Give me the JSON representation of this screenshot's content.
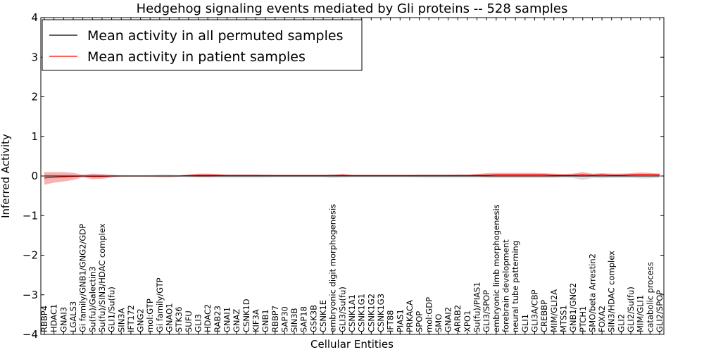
{
  "chart_data": {
    "type": "line",
    "title": "Hedgehog signaling events mediated by Gli proteins -- 528 samples",
    "xlabel": "Cellular Entities",
    "ylabel": "Inferred Activity",
    "ylim": [
      -4,
      4
    ],
    "yticks": [
      -4,
      -3,
      -2,
      -1,
      0,
      1,
      2,
      3,
      4
    ],
    "legend_position": "top-left",
    "colors": {
      "permuted": "#000000",
      "patient": "#ff0000",
      "patient_band": "#f4a0a0",
      "permuted_band": "#c0c0c0"
    },
    "categories": [
      "RBBP4",
      "HDAC1",
      "GNAI3",
      "LGALS3",
      "Gi family/GNB1/GNG2/GDP",
      "Su(fu)/Galectin3",
      "Su(fu)/SIN3/HDAC complex",
      "GLI1/Su(fu)",
      "SIN3A",
      "IFT172",
      "GNG2",
      "mol:GTP",
      "Gi family/GTP",
      "GNAO1",
      "STK36",
      "SUFU",
      "GLI3",
      "HDAC2",
      "RAB23",
      "GNAI1",
      "GNAZ",
      "CSNK1D",
      "KIF3A",
      "GNB1",
      "RBBP7",
      "SAP30",
      "SIN3B",
      "SAP18",
      "GSK3B",
      "CSNK1E",
      "embryonic digit morphogenesis",
      "GLI3/Su(fu)",
      "CSNK1A1",
      "CSNK1G1",
      "CSNK1G2",
      "CSNK1G3",
      "IFT88",
      "PIAS1",
      "PRKACA",
      "SPOP",
      "mol:GDP",
      "SMO",
      "GNAI2",
      "ARRB2",
      "XPO1",
      "Su(fu)/PIAS1",
      "GLI3/SPOP",
      "embryonic limb morphogenesis",
      "forebrain development",
      "neural tube patterning",
      "GLI1",
      "GLI3A/CBP",
      "CREBBP",
      "MIM/GLI2A",
      "MTSS1",
      "GNB1/GNG2",
      "PTCH1",
      "SMO/beta Arrestin2",
      "FOXA2",
      "SIN3/HDAC complex",
      "GLI2",
      "GLI2/Su(fu)",
      "MIM/GLI1",
      "catabolic process",
      "GLI2/SPOP"
    ],
    "series": [
      {
        "name": "Mean activity in all permuted samples",
        "values": [
          0,
          0,
          0,
          0,
          0,
          0,
          0,
          0,
          0,
          0,
          0,
          0,
          0,
          0,
          0,
          0,
          0,
          0,
          0,
          0,
          0,
          0,
          0,
          0,
          0,
          0,
          0,
          0,
          0,
          0,
          0,
          0,
          0,
          0,
          0,
          0,
          0,
          0,
          0,
          0,
          0,
          0,
          0,
          0,
          0,
          0,
          0,
          0,
          0,
          0,
          0,
          0,
          0,
          0,
          0,
          0,
          0,
          0,
          0,
          0,
          0,
          0,
          0,
          0,
          0
        ],
        "band_upper": [
          0.06,
          0.06,
          0.05,
          0.04,
          0.03,
          0.05,
          0.04,
          0.03,
          0.02,
          0.02,
          0.02,
          0.02,
          0.04,
          0.04,
          0.02,
          0.03,
          0.04,
          0.04,
          0.04,
          0.04,
          0.04,
          0.04,
          0.04,
          0.04,
          0.03,
          0.03,
          0.03,
          0.03,
          0.03,
          0.03,
          0.05,
          0.04,
          0.03,
          0.03,
          0.03,
          0.03,
          0.03,
          0.03,
          0.03,
          0.04,
          0.04,
          0.04,
          0.04,
          0.04,
          0.04,
          0.04,
          0.05,
          0.05,
          0.05,
          0.05,
          0.05,
          0.05,
          0.05,
          0.05,
          0.04,
          0.05,
          0.07,
          0.05,
          0.06,
          0.05,
          0.05,
          0.05,
          0.06,
          0.06,
          0.05
        ],
        "band_lower": [
          -0.06,
          -0.06,
          -0.05,
          -0.04,
          -0.03,
          -0.05,
          -0.04,
          -0.03,
          -0.02,
          -0.02,
          -0.02,
          -0.02,
          -0.04,
          -0.04,
          -0.02,
          -0.03,
          -0.04,
          -0.04,
          -0.04,
          -0.04,
          -0.04,
          -0.04,
          -0.04,
          -0.04,
          -0.03,
          -0.03,
          -0.03,
          -0.03,
          -0.03,
          -0.03,
          -0.05,
          -0.04,
          -0.03,
          -0.03,
          -0.03,
          -0.03,
          -0.03,
          -0.03,
          -0.03,
          -0.04,
          -0.04,
          -0.04,
          -0.04,
          -0.04,
          -0.04,
          -0.04,
          -0.05,
          -0.05,
          -0.05,
          -0.05,
          -0.05,
          -0.05,
          -0.05,
          -0.05,
          -0.04,
          -0.05,
          -0.1,
          -0.05,
          -0.06,
          -0.05,
          -0.05,
          -0.05,
          -0.06,
          -0.06,
          -0.05
        ]
      },
      {
        "name": "Mean activity in patient samples",
        "values": [
          -0.05,
          -0.03,
          -0.02,
          -0.01,
          0,
          -0.01,
          -0.01,
          0,
          0,
          0,
          0,
          0,
          0,
          0,
          0,
          0.01,
          0.02,
          0.02,
          0.02,
          0.01,
          0.01,
          0.01,
          0.01,
          0.01,
          0.01,
          0.01,
          0.01,
          0.01,
          0.01,
          0.01,
          0.01,
          0.02,
          0.01,
          0.01,
          0.01,
          0.01,
          0.01,
          0.01,
          0.01,
          0.01,
          0.01,
          0.01,
          0.01,
          0.01,
          0.01,
          0.02,
          0.02,
          0.03,
          0.03,
          0.03,
          0.03,
          0.03,
          0.03,
          0.02,
          0.02,
          0.02,
          0.03,
          0.02,
          0.03,
          0.02,
          0.02,
          0.03,
          0.04,
          0.04,
          0.03
        ],
        "band_upper": [
          0.1,
          0.1,
          0.1,
          0.08,
          0.03,
          0.06,
          0.05,
          0.03,
          0.01,
          0.01,
          0.01,
          0.01,
          0.01,
          0.01,
          0.02,
          0.04,
          0.06,
          0.06,
          0.05,
          0.04,
          0.04,
          0.04,
          0.04,
          0.03,
          0.03,
          0.03,
          0.03,
          0.03,
          0.03,
          0.03,
          0.03,
          0.05,
          0.03,
          0.03,
          0.03,
          0.03,
          0.03,
          0.03,
          0.03,
          0.03,
          0.03,
          0.03,
          0.03,
          0.04,
          0.04,
          0.05,
          0.07,
          0.08,
          0.08,
          0.08,
          0.08,
          0.08,
          0.07,
          0.06,
          0.05,
          0.06,
          0.1,
          0.06,
          0.07,
          0.06,
          0.06,
          0.07,
          0.09,
          0.08,
          0.06
        ],
        "band_lower": [
          -0.22,
          -0.17,
          -0.14,
          -0.1,
          -0.03,
          -0.08,
          -0.07,
          -0.04,
          -0.01,
          -0.01,
          -0.01,
          -0.01,
          -0.01,
          -0.01,
          -0.01,
          -0.01,
          -0.02,
          -0.02,
          -0.01,
          -0.01,
          -0.01,
          -0.01,
          -0.01,
          -0.01,
          -0.01,
          -0.01,
          -0.01,
          -0.01,
          -0.01,
          -0.01,
          -0.01,
          -0.01,
          -0.01,
          -0.01,
          -0.01,
          -0.01,
          -0.01,
          -0.01,
          -0.01,
          -0.01,
          -0.01,
          -0.01,
          -0.01,
          -0.01,
          -0.01,
          -0.01,
          -0.02,
          -0.02,
          -0.02,
          -0.02,
          -0.02,
          -0.02,
          -0.02,
          -0.02,
          -0.01,
          -0.01,
          -0.02,
          -0.01,
          -0.01,
          -0.01,
          -0.01,
          -0.01,
          -0.01,
          -0.01,
          0
        ]
      }
    ]
  }
}
